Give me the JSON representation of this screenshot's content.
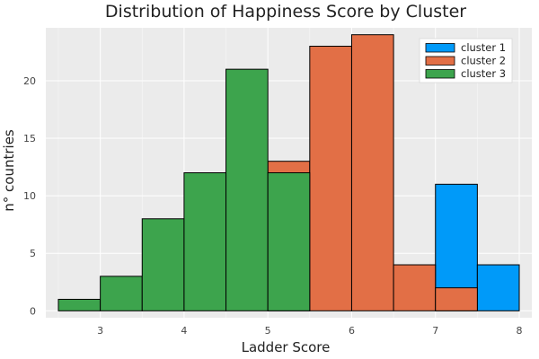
{
  "chart_data": {
    "type": "bar",
    "title": "Distribution of Happiness Score by Cluster",
    "xlabel": "Ladder Score",
    "ylabel": "n° countries",
    "xlim": [
      2.35,
      8.15
    ],
    "ylim": [
      -0.6,
      24.6
    ],
    "x_ticks": [
      3,
      4,
      5,
      6,
      7,
      8
    ],
    "y_ticks": [
      0,
      5,
      10,
      15,
      20
    ],
    "grid": true,
    "legend_position": "top-right",
    "bin_width": 0.5,
    "series": [
      {
        "name": "cluster 1",
        "color": "#009af9",
        "bins": [
          {
            "x0": 7.0,
            "x1": 7.5,
            "value": 11
          },
          {
            "x0": 7.5,
            "x1": 8.0,
            "value": 4
          }
        ]
      },
      {
        "name": "cluster 2",
        "color": "#e26f46",
        "bins": [
          {
            "x0": 5.0,
            "x1": 5.5,
            "value": 13
          },
          {
            "x0": 5.5,
            "x1": 6.0,
            "value": 23
          },
          {
            "x0": 6.0,
            "x1": 6.5,
            "value": 24
          },
          {
            "x0": 6.5,
            "x1": 7.0,
            "value": 4
          },
          {
            "x0": 7.0,
            "x1": 7.5,
            "value": 2
          }
        ]
      },
      {
        "name": "cluster 3",
        "color": "#3da44d",
        "bins": [
          {
            "x0": 2.5,
            "x1": 3.0,
            "value": 1
          },
          {
            "x0": 3.0,
            "x1": 3.5,
            "value": 3
          },
          {
            "x0": 3.5,
            "x1": 4.0,
            "value": 8
          },
          {
            "x0": 4.0,
            "x1": 4.5,
            "value": 12
          },
          {
            "x0": 4.5,
            "x1": 5.0,
            "value": 21
          },
          {
            "x0": 5.0,
            "x1": 5.5,
            "value": 12
          }
        ]
      }
    ]
  }
}
